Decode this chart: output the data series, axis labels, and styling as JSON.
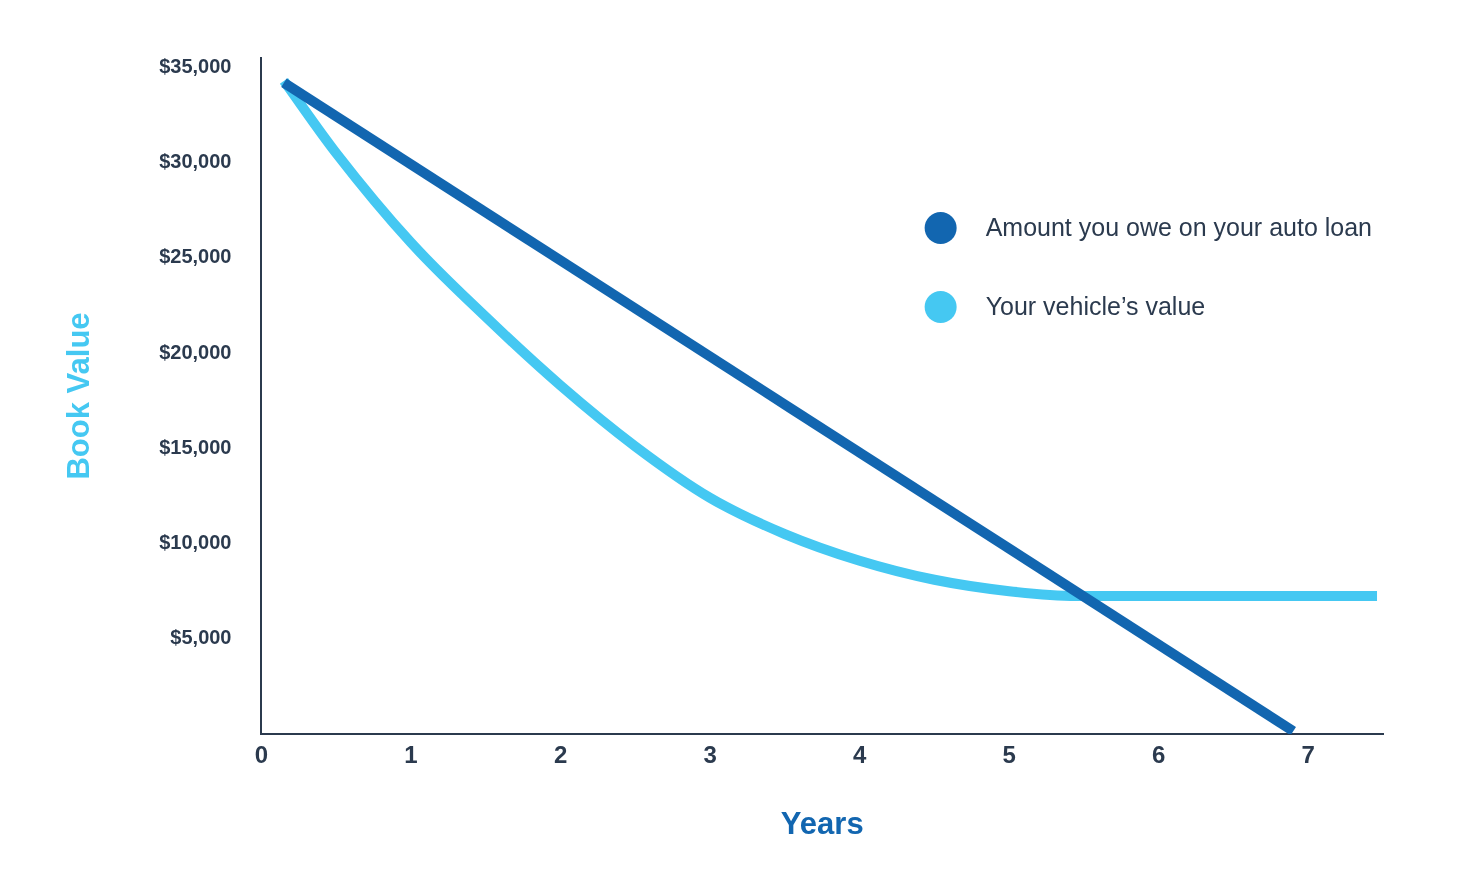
{
  "chart_data": {
    "type": "line",
    "xlabel": "Years",
    "ylabel": "Book Value",
    "xlim": [
      0,
      7.5
    ],
    "xticks": [
      0,
      1,
      2,
      3,
      4,
      5,
      6,
      7
    ],
    "ylim": [
      0,
      35500
    ],
    "yticks": [
      {
        "value": 5000,
        "label": "$5,000"
      },
      {
        "value": 10000,
        "label": "$10,000"
      },
      {
        "value": 15000,
        "label": "$15,000"
      },
      {
        "value": 20000,
        "label": "$20,000"
      },
      {
        "value": 25000,
        "label": "$25,000"
      },
      {
        "value": 30000,
        "label": "$30,000"
      },
      {
        "value": 35000,
        "label": "$35,000"
      }
    ],
    "series": [
      {
        "name": "Amount you owe on your auto loan",
        "color": "#1266b0",
        "x": [
          0.15,
          6.9
        ],
        "values": [
          34200,
          150
        ]
      },
      {
        "name": "Your vehicle’s value",
        "color": "#45c8f2",
        "x": [
          0.15,
          0.5,
          1,
          1.5,
          2,
          2.5,
          3,
          3.5,
          4,
          4.5,
          5,
          5.45,
          7.46
        ],
        "values": [
          34300,
          30500,
          25800,
          21900,
          18300,
          15100,
          12400,
          10500,
          9100,
          8100,
          7500,
          7250,
          7250
        ]
      }
    ],
    "grid": false,
    "legend": "top right",
    "marker": "none",
    "line_style": "solid"
  }
}
